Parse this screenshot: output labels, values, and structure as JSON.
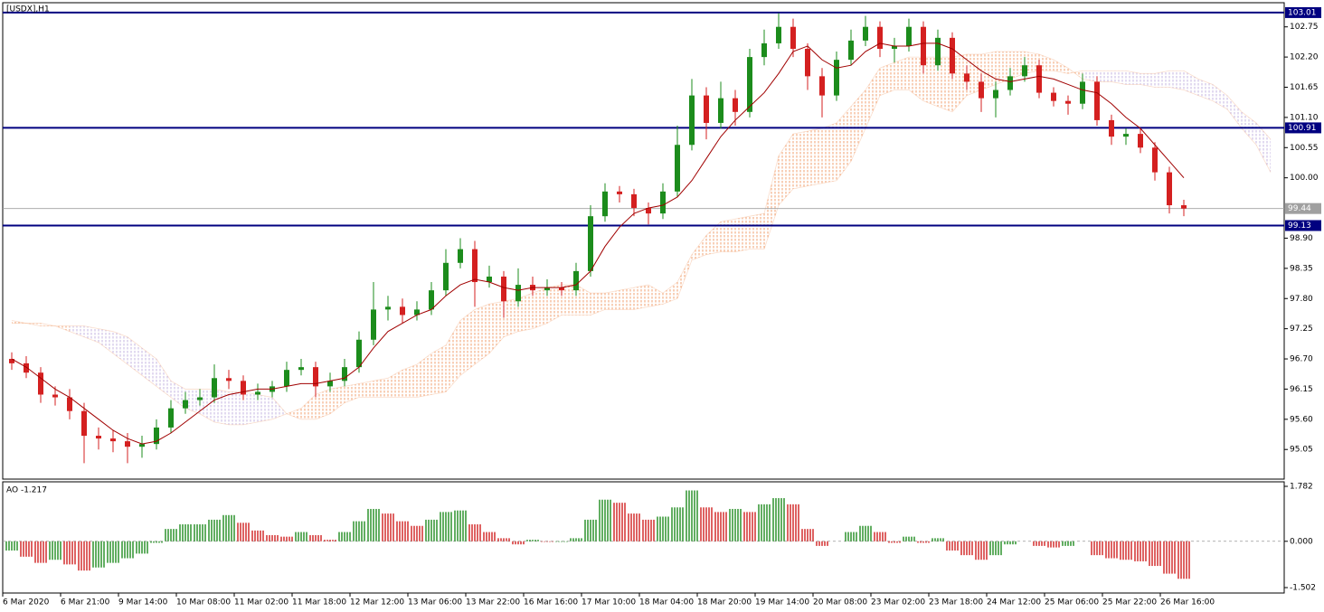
{
  "chart_data": [
    {
      "type": "candlestick",
      "title": "[USDX],H1",
      "categories": [
        "6 Mar 2020",
        null,
        null,
        null,
        "6 Mar 21:00",
        null,
        null,
        null,
        "9 Mar 14:00",
        null,
        null,
        null,
        "10 Mar 08:00",
        null,
        null,
        null,
        "11 Mar 02:00",
        null,
        null,
        null,
        "11 Mar 18:00",
        null,
        null,
        null,
        "12 Mar 12:00",
        null,
        null,
        null,
        "13 Mar 06:00",
        null,
        null,
        null,
        "13 Mar 22:00",
        null,
        null,
        null,
        "16 Mar 16:00",
        null,
        null,
        null,
        "17 Mar 10:00",
        null,
        null,
        null,
        "18 Mar 04:00",
        null,
        null,
        null,
        "18 Mar 20:00",
        null,
        null,
        null,
        "19 Mar 14:00",
        null,
        null,
        null,
        "20 Mar 08:00",
        null,
        null,
        null,
        "23 Mar 02:00",
        null,
        null,
        null,
        "23 Mar 18:00",
        null,
        null,
        null,
        "24 Mar 12:00",
        null,
        null,
        null,
        "25 Mar 06:00",
        null,
        null,
        null,
        "25 Mar 22:00",
        null,
        null,
        null,
        "26 Mar 16:00",
        null,
        null,
        null,
        null,
        null,
        null,
        null
      ],
      "open": [
        96.7,
        96.62,
        96.45,
        96.05,
        96.0,
        95.75,
        95.3,
        95.25,
        95.2,
        95.1,
        95.15,
        95.45,
        95.8,
        95.95,
        96.0,
        96.35,
        96.3,
        96.05,
        96.1,
        96.2,
        96.5,
        96.55,
        96.2,
        96.3,
        96.55,
        97.05,
        97.6,
        97.65,
        97.5,
        97.6,
        97.95,
        98.45,
        98.7,
        98.1,
        98.2,
        97.75,
        98.05,
        97.95,
        98.0,
        97.95,
        98.3,
        99.3,
        99.75,
        99.7,
        99.45,
        99.35,
        99.75,
        100.6,
        101.5,
        101.0,
        101.45,
        101.2,
        102.2,
        102.45,
        102.75,
        102.35,
        101.85,
        101.5,
        102.15,
        102.5,
        102.75,
        102.35,
        102.4,
        102.75,
        102.05,
        102.55,
        101.9,
        101.75,
        101.45,
        101.6,
        101.85,
        102.05,
        101.55,
        101.4,
        101.35,
        101.75,
        101.05,
        100.75,
        100.8,
        100.55,
        100.1,
        99.5,
        null,
        null,
        null,
        null,
        null,
        null
      ],
      "high": [
        96.82,
        96.75,
        96.55,
        96.2,
        96.15,
        95.9,
        95.45,
        95.4,
        95.35,
        95.3,
        95.6,
        95.95,
        96.1,
        96.15,
        96.6,
        96.5,
        96.4,
        96.25,
        96.3,
        96.65,
        96.7,
        96.65,
        96.45,
        96.7,
        97.2,
        98.1,
        97.85,
        97.8,
        97.75,
        98.1,
        98.7,
        98.9,
        98.85,
        98.4,
        98.3,
        98.35,
        98.2,
        98.15,
        98.1,
        98.45,
        99.5,
        99.9,
        99.85,
        99.8,
        99.55,
        99.9,
        100.95,
        101.8,
        101.65,
        101.75,
        101.6,
        102.35,
        102.7,
        103.0,
        102.9,
        102.45,
        102.0,
        102.3,
        102.7,
        102.95,
        102.85,
        102.55,
        102.9,
        102.85,
        102.7,
        102.65,
        102.05,
        101.9,
        101.75,
        102.0,
        102.2,
        102.15,
        101.65,
        101.5,
        101.9,
        101.85,
        101.15,
        100.9,
        100.9,
        100.65,
        100.2,
        99.6,
        null,
        null,
        null,
        null,
        null,
        null
      ],
      "low": [
        96.5,
        96.35,
        95.9,
        95.85,
        95.6,
        94.8,
        95.05,
        95.0,
        94.8,
        94.9,
        95.05,
        95.35,
        95.7,
        95.85,
        95.9,
        96.15,
        95.95,
        95.95,
        96.0,
        96.1,
        96.4,
        96.0,
        96.1,
        96.2,
        96.45,
        96.95,
        97.4,
        97.35,
        97.4,
        97.5,
        97.85,
        98.35,
        97.65,
        98.0,
        97.45,
        97.65,
        97.85,
        97.85,
        97.85,
        97.85,
        98.2,
        99.2,
        99.55,
        99.3,
        99.15,
        99.25,
        99.65,
        100.5,
        100.7,
        100.9,
        100.95,
        101.1,
        102.05,
        102.35,
        102.2,
        101.6,
        101.1,
        101.4,
        102.05,
        102.4,
        102.2,
        102.1,
        102.3,
        101.9,
        101.95,
        101.8,
        101.6,
        101.2,
        101.1,
        101.5,
        101.75,
        101.45,
        101.3,
        101.15,
        101.25,
        100.95,
        100.6,
        100.6,
        100.45,
        99.95,
        99.35,
        99.3,
        null,
        null,
        null,
        null,
        null,
        null
      ],
      "close": [
        96.62,
        96.45,
        96.05,
        96.0,
        95.75,
        95.3,
        95.25,
        95.2,
        95.1,
        95.15,
        95.45,
        95.8,
        95.95,
        96.0,
        96.35,
        96.3,
        96.05,
        96.1,
        96.2,
        96.5,
        96.55,
        96.2,
        96.3,
        96.55,
        97.05,
        97.6,
        97.65,
        97.5,
        97.6,
        97.95,
        98.45,
        98.7,
        98.1,
        98.2,
        97.75,
        98.05,
        97.95,
        98.0,
        97.95,
        98.3,
        99.3,
        99.75,
        99.7,
        99.45,
        99.35,
        99.75,
        100.6,
        101.5,
        101.0,
        101.45,
        101.2,
        102.2,
        102.45,
        102.75,
        102.35,
        101.85,
        101.5,
        102.15,
        102.5,
        102.75,
        102.35,
        102.4,
        102.75,
        102.05,
        102.55,
        101.9,
        101.75,
        101.45,
        101.6,
        101.85,
        102.05,
        101.55,
        101.4,
        101.35,
        101.75,
        101.05,
        100.75,
        100.8,
        100.55,
        100.1,
        99.5,
        99.44,
        null,
        null,
        null,
        null,
        null,
        null
      ],
      "up_color": "#1c8c1c",
      "down_color": "#d42020",
      "ma": {
        "color": "#a00000",
        "values": [
          96.7,
          96.55,
          96.35,
          96.15,
          96.0,
          95.8,
          95.6,
          95.4,
          95.25,
          95.15,
          95.2,
          95.35,
          95.55,
          95.75,
          95.95,
          96.05,
          96.1,
          96.15,
          96.15,
          96.2,
          96.25,
          96.25,
          96.3,
          96.35,
          96.55,
          96.9,
          97.2,
          97.35,
          97.5,
          97.6,
          97.85,
          98.05,
          98.15,
          98.1,
          98.0,
          97.95,
          98.0,
          98.0,
          98.0,
          98.05,
          98.3,
          98.75,
          99.1,
          99.35,
          99.45,
          99.5,
          99.65,
          99.95,
          100.35,
          100.75,
          101.05,
          101.3,
          101.55,
          101.9,
          102.3,
          102.4,
          102.15,
          102.0,
          102.05,
          102.3,
          102.45,
          102.4,
          102.4,
          102.45,
          102.45,
          102.35,
          102.15,
          101.95,
          101.8,
          101.75,
          101.8,
          101.85,
          101.8,
          101.7,
          101.6,
          101.55,
          101.35,
          101.1,
          100.9,
          100.6,
          100.3,
          100.0,
          null,
          null,
          null,
          null,
          null,
          null
        ]
      },
      "cloud": {
        "up_color": "#f0a070",
        "down_color": "#c4b4e0",
        "span_a": [
          97.4,
          97.35,
          97.35,
          97.3,
          97.2,
          97.1,
          97.0,
          96.8,
          96.6,
          96.4,
          96.2,
          96.0,
          95.8,
          95.7,
          95.55,
          95.5,
          95.5,
          95.55,
          95.6,
          95.7,
          95.8,
          96.05,
          96.15,
          96.2,
          96.25,
          96.3,
          96.35,
          96.5,
          96.6,
          96.8,
          96.95,
          97.4,
          97.6,
          97.7,
          97.75,
          97.8,
          97.9,
          98.0,
          98.05,
          98.05,
          97.9,
          97.9,
          97.95,
          98.0,
          98.05,
          97.9,
          98.1,
          98.6,
          98.95,
          99.2,
          99.25,
          99.3,
          99.35,
          100.4,
          100.8,
          100.85,
          100.9,
          101.0,
          101.3,
          101.6,
          102.0,
          102.1,
          102.2,
          102.2,
          102.2,
          102.2,
          102.25,
          102.25,
          102.3,
          102.3,
          102.3,
          102.25,
          102.15,
          102.0,
          101.8,
          101.75,
          101.75,
          101.7,
          101.7,
          101.65,
          101.65,
          101.6,
          101.5,
          101.4,
          101.25,
          100.9,
          100.6,
          100.1
        ],
        "span_b": [
          97.35,
          97.35,
          97.3,
          97.3,
          97.3,
          97.3,
          97.25,
          97.2,
          97.1,
          96.9,
          96.7,
          96.3,
          96.15,
          96.15,
          96.15,
          96.1,
          96.1,
          96.05,
          96.0,
          95.7,
          95.6,
          95.6,
          95.7,
          95.9,
          96.0,
          96.0,
          96.0,
          96.0,
          96.0,
          96.05,
          96.1,
          96.4,
          96.6,
          96.8,
          97.1,
          97.2,
          97.25,
          97.35,
          97.5,
          97.5,
          97.5,
          97.6,
          97.6,
          97.6,
          97.65,
          97.7,
          97.8,
          98.5,
          98.6,
          98.65,
          98.65,
          98.7,
          98.7,
          99.5,
          99.8,
          99.85,
          99.9,
          99.95,
          100.3,
          100.9,
          101.5,
          101.6,
          101.6,
          101.4,
          101.3,
          101.2,
          101.5,
          101.6,
          101.7,
          101.8,
          101.9,
          101.95,
          101.95,
          101.9,
          101.95,
          101.95,
          101.95,
          101.95,
          101.9,
          101.9,
          101.95,
          101.95,
          101.8,
          101.7,
          101.5,
          101.2,
          101.0,
          100.7
        ]
      },
      "levels": [
        103.01,
        100.91,
        99.13
      ],
      "level_color": "#000080",
      "last_price": 99.44,
      "last_price_color": "#a0a0a0",
      "ylim": [
        94.51,
        103.19
      ],
      "yticks": [
        95.05,
        {
          "value": 95.6,
          "label": "95.60"
        },
        96.15,
        {
          "value": 96.7,
          "label": "96.70"
        },
        97.25,
        {
          "value": 97.8,
          "label": "97.80"
        },
        98.35,
        {
          "value": 98.9,
          "label": "98.90"
        },
        {
          "value": 100,
          "label": "100.00"
        },
        100.55,
        {
          "value": 101.1,
          "label": "101.10"
        },
        101.65,
        {
          "value": 102.2,
          "label": "102.20"
        },
        102.75
      ]
    },
    {
      "type": "histogram",
      "title": "AO -1.217",
      "values": [
        -0.3,
        -0.5,
        -0.7,
        -0.6,
        -0.75,
        -0.95,
        -0.85,
        -0.7,
        -0.55,
        -0.4,
        -0.05,
        0.4,
        0.55,
        0.55,
        0.7,
        0.85,
        0.6,
        0.35,
        0.2,
        0.15,
        0.3,
        0.2,
        0.05,
        0.3,
        0.65,
        1.05,
        0.9,
        0.65,
        0.5,
        0.7,
        0.95,
        1.0,
        0.55,
        0.3,
        0.1,
        -0.1,
        0.05,
        -0.02,
        -0.02,
        0.1,
        0.7,
        1.35,
        1.25,
        0.9,
        0.7,
        0.8,
        1.1,
        1.65,
        1.1,
        0.95,
        1.05,
        0.95,
        1.2,
        1.4,
        1.2,
        0.4,
        -0.15,
        0.0,
        0.3,
        0.5,
        0.3,
        -0.05,
        0.15,
        -0.05,
        0.1,
        -0.3,
        -0.45,
        -0.6,
        -0.45,
        -0.1,
        0.0,
        -0.15,
        -0.2,
        -0.15,
        0.0,
        -0.45,
        -0.55,
        -0.6,
        -0.65,
        -0.8,
        -1.05,
        -1.217,
        null,
        null,
        null,
        null,
        null,
        null
      ],
      "up_color": "#1e8c1e",
      "down_color": "#d02020",
      "ylim": [
        -1.678,
        1.929
      ],
      "yticks": [
        -1.502,
        {
          "value": 0,
          "label": "0.000"
        },
        1.782
      ]
    }
  ]
}
